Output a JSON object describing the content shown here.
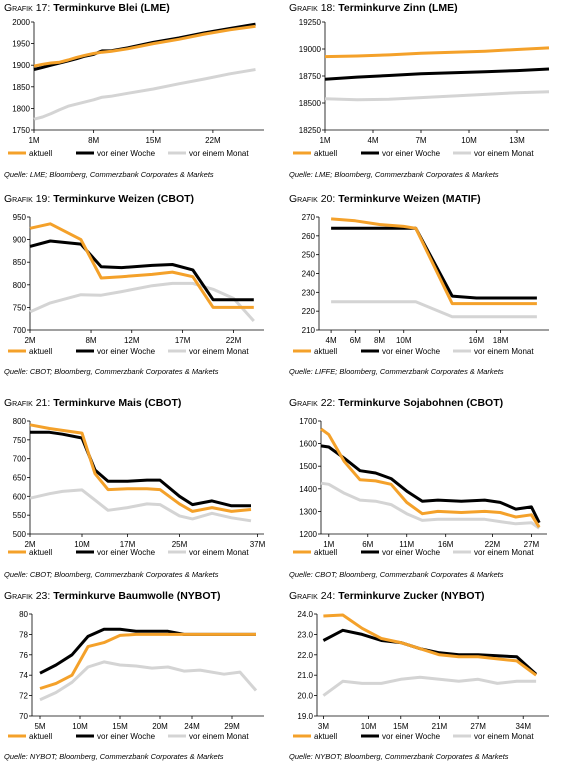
{
  "legend_labels": [
    "aktuell",
    "vor einer Woche",
    "vor einem Monat"
  ],
  "colors": {
    "aktuell": "#f4a12a",
    "woche": "#000000",
    "monat": "#d4d4d4"
  },
  "charts": [
    {
      "id": "g17",
      "prefix": "Grafik 17:",
      "title": "Terminkurve Blei (LME)",
      "source": "Quelle: LME; Bloomberg, Commerzbank Corporates & Markets"
    },
    {
      "id": "g18",
      "prefix": "Grafik 18:",
      "title": "Terminkurve Zinn (LME)",
      "source": "Quelle: LME; Bloomberg, Commerzbank Corporates & Markets"
    },
    {
      "id": "g19",
      "prefix": "Grafik 19:",
      "title": "Terminkurve Weizen (CBOT)",
      "source": "Quelle: CBOT; Bloomberg, Commerzbank Corporates & Markets"
    },
    {
      "id": "g20",
      "prefix": "Grafik 20:",
      "title": "Terminkurve Weizen (MATIF)",
      "source": "Quelle: LIFFE; Bloomberg, Commerzbank Corporates & Markets"
    },
    {
      "id": "g21",
      "prefix": "Grafik 21:",
      "title": "Terminkurve Mais (CBOT)",
      "source": "Quelle: CBOT; Bloomberg, Commerzbank Corporates & Markets"
    },
    {
      "id": "g22",
      "prefix": "Grafik 22:",
      "title": "Terminkurve Sojabohnen (CBOT)",
      "source": "Quelle: CBOT; Bloomberg, Commerzbank Corporates & Markets"
    },
    {
      "id": "g23",
      "prefix": "Grafik 23:",
      "title": "Terminkurve Baumwolle (NYBOT)",
      "source": "Quelle: NYBOT; Bloomberg, Commerzbank Corporates & Markets"
    },
    {
      "id": "g24",
      "prefix": "Grafik 24:",
      "title": "Terminkurve Zucker (NYBOT)",
      "source": "Quelle: NYBOT; Bloomberg, Commerzbank Corporates & Markets"
    }
  ],
  "chart_data": [
    {
      "type": "line",
      "title": "Terminkurve Blei (LME)",
      "x_range": [
        1,
        28
      ],
      "ylim": [
        1750,
        2000
      ],
      "y_ticks": [
        1750,
        1800,
        1850,
        1900,
        1950,
        2000
      ],
      "x_ticks": [
        {
          "x": 1,
          "label": "1M"
        },
        {
          "x": 8,
          "label": "8M"
        },
        {
          "x": 15,
          "label": "15M"
        },
        {
          "x": 22,
          "label": "22M"
        }
      ],
      "series": [
        {
          "name": "aktuell",
          "x": [
            1,
            2,
            3,
            4,
            5,
            6,
            7,
            8,
            9,
            10,
            12,
            15,
            18,
            21,
            24,
            27
          ],
          "y": [
            1898,
            1902,
            1905,
            1907,
            1912,
            1918,
            1923,
            1927,
            1930,
            1932,
            1938,
            1950,
            1960,
            1972,
            1982,
            1990
          ]
        },
        {
          "name": "vor einer Woche",
          "x": [
            1,
            2,
            3,
            4,
            5,
            6,
            7,
            8,
            9,
            10,
            12,
            15,
            18,
            21,
            24,
            27
          ],
          "y": [
            1890,
            1895,
            1900,
            1905,
            1910,
            1915,
            1921,
            1925,
            1933,
            1933,
            1940,
            1953,
            1963,
            1975,
            1985,
            1995
          ]
        },
        {
          "name": "vor einem Monat",
          "x": [
            1,
            2,
            3,
            4,
            5,
            6,
            7,
            8,
            9,
            10,
            12,
            15,
            18,
            21,
            24,
            27
          ],
          "y": [
            1775,
            1780,
            1788,
            1797,
            1805,
            1810,
            1815,
            1820,
            1826,
            1828,
            1835,
            1845,
            1857,
            1868,
            1880,
            1890
          ]
        }
      ]
    },
    {
      "type": "line",
      "title": "Terminkurve Zinn (LME)",
      "x_range": [
        1,
        15
      ],
      "ylim": [
        18250,
        19250
      ],
      "y_ticks": [
        18250,
        18500,
        18750,
        19000,
        19250
      ],
      "x_ticks": [
        {
          "x": 1,
          "label": "1M"
        },
        {
          "x": 4,
          "label": "4M"
        },
        {
          "x": 7,
          "label": "7M"
        },
        {
          "x": 10,
          "label": "10M"
        },
        {
          "x": 13,
          "label": "13M"
        }
      ],
      "series": [
        {
          "name": "aktuell",
          "x": [
            1,
            3,
            5,
            7,
            9,
            11,
            13,
            15
          ],
          "y": [
            18930,
            18935,
            18945,
            18960,
            18970,
            18980,
            18995,
            19010
          ]
        },
        {
          "name": "vor einer Woche",
          "x": [
            1,
            3,
            5,
            7,
            9,
            11,
            13,
            15
          ],
          "y": [
            18720,
            18740,
            18755,
            18770,
            18780,
            18790,
            18800,
            18815
          ]
        },
        {
          "name": "vor einem Monat",
          "x": [
            1,
            3,
            5,
            7,
            9,
            11,
            13,
            15
          ],
          "y": [
            18540,
            18530,
            18535,
            18550,
            18565,
            18580,
            18595,
            18605
          ]
        }
      ]
    },
    {
      "type": "line",
      "title": "Terminkurve Weizen (CBOT)",
      "x_range": [
        2,
        25
      ],
      "ylim": [
        700,
        950
      ],
      "y_ticks": [
        700,
        750,
        800,
        850,
        900,
        950
      ],
      "x_ticks": [
        {
          "x": 2,
          "label": "2M"
        },
        {
          "x": 8,
          "label": "8M"
        },
        {
          "x": 12,
          "label": "12M"
        },
        {
          "x": 17,
          "label": "17M"
        },
        {
          "x": 22,
          "label": "22M"
        }
      ],
      "series": [
        {
          "name": "aktuell",
          "x": [
            2,
            4,
            7,
            9,
            11,
            14,
            16,
            18,
            20,
            22,
            24
          ],
          "y": [
            925,
            935,
            900,
            815,
            818,
            823,
            828,
            818,
            750,
            750,
            750
          ]
        },
        {
          "name": "vor einer Woche",
          "x": [
            2,
            4,
            7,
            9,
            11,
            14,
            16,
            18,
            20,
            22,
            24
          ],
          "y": [
            885,
            897,
            890,
            840,
            838,
            843,
            845,
            833,
            767,
            767,
            767
          ]
        },
        {
          "name": "vor einem Monat",
          "x": [
            2,
            4,
            7,
            9,
            11,
            14,
            16,
            18,
            20,
            22,
            24
          ],
          "y": [
            740,
            760,
            778,
            777,
            785,
            798,
            803,
            803,
            790,
            770,
            720
          ]
        }
      ]
    },
    {
      "type": "line",
      "title": "Terminkurve Weizen (MATIF)",
      "x_range": [
        3,
        22
      ],
      "ylim": [
        210,
        270
      ],
      "y_ticks": [
        210,
        220,
        230,
        240,
        250,
        260,
        270
      ],
      "x_ticks": [
        {
          "x": 4,
          "label": "4M"
        },
        {
          "x": 6,
          "label": "6M"
        },
        {
          "x": 8,
          "label": "8M"
        },
        {
          "x": 10,
          "label": "10M"
        },
        {
          "x": 16,
          "label": "16M"
        },
        {
          "x": 18,
          "label": "18M"
        }
      ],
      "series": [
        {
          "name": "aktuell",
          "x": [
            4,
            6,
            8,
            10,
            11,
            14,
            16,
            18,
            21
          ],
          "y": [
            269,
            268,
            266,
            265,
            264,
            224,
            224,
            224,
            224
          ]
        },
        {
          "name": "vor einer Woche",
          "x": [
            4,
            6,
            8,
            10,
            11,
            14,
            16,
            18,
            21
          ],
          "y": [
            264,
            264,
            264,
            264,
            264,
            228,
            227,
            227,
            227
          ]
        },
        {
          "name": "vor einem Monat",
          "x": [
            4,
            6,
            8,
            10,
            11,
            14,
            16,
            18,
            21
          ],
          "y": [
            225,
            225,
            225,
            225,
            225,
            217,
            217,
            217,
            217
          ]
        }
      ]
    },
    {
      "type": "line",
      "title": "Terminkurve Mais (CBOT)",
      "x_range": [
        2,
        38
      ],
      "ylim": [
        500,
        800
      ],
      "y_ticks": [
        500,
        550,
        600,
        650,
        700,
        750,
        800
      ],
      "x_ticks": [
        {
          "x": 2,
          "label": "2M"
        },
        {
          "x": 10,
          "label": "10M"
        },
        {
          "x": 17,
          "label": "17M"
        },
        {
          "x": 25,
          "label": "25M"
        },
        {
          "x": 37,
          "label": "37M"
        }
      ],
      "series": [
        {
          "name": "aktuell",
          "x": [
            2,
            5,
            7,
            10,
            12,
            14,
            17,
            20,
            22,
            25,
            27,
            30,
            33,
            36
          ],
          "y": [
            790,
            780,
            775,
            768,
            660,
            618,
            620,
            620,
            618,
            580,
            560,
            570,
            560,
            565
          ]
        },
        {
          "name": "vor einer Woche",
          "x": [
            2,
            5,
            7,
            10,
            12,
            14,
            17,
            20,
            22,
            25,
            27,
            30,
            33,
            36
          ],
          "y": [
            770,
            770,
            765,
            755,
            670,
            640,
            640,
            643,
            643,
            600,
            578,
            588,
            575,
            575
          ]
        },
        {
          "name": "vor einem Monat",
          "x": [
            2,
            5,
            7,
            10,
            12,
            14,
            17,
            20,
            22,
            25,
            27,
            30,
            33,
            36
          ],
          "y": [
            595,
            607,
            613,
            617,
            590,
            563,
            570,
            580,
            578,
            548,
            540,
            555,
            543,
            535
          ]
        }
      ]
    },
    {
      "type": "line",
      "title": "Terminkurve Sojabohnen (CBOT)",
      "x_range": [
        0,
        29
      ],
      "ylim": [
        1200,
        1700
      ],
      "y_ticks": [
        1200,
        1300,
        1400,
        1500,
        1600,
        1700
      ],
      "x_ticks": [
        {
          "x": 1,
          "label": "1M"
        },
        {
          "x": 6,
          "label": "6M"
        },
        {
          "x": 11,
          "label": "11M"
        },
        {
          "x": 16,
          "label": "16M"
        },
        {
          "x": 22,
          "label": "22M"
        },
        {
          "x": 27,
          "label": "27M"
        }
      ],
      "series": [
        {
          "name": "aktuell",
          "x": [
            0,
            1,
            3,
            5,
            7,
            9,
            11,
            13,
            15,
            18,
            21,
            23,
            25,
            27,
            28
          ],
          "y": [
            1665,
            1640,
            1520,
            1440,
            1435,
            1420,
            1340,
            1290,
            1300,
            1295,
            1300,
            1295,
            1275,
            1285,
            1230
          ]
        },
        {
          "name": "vor einer Woche",
          "x": [
            0,
            1,
            3,
            5,
            7,
            9,
            11,
            13,
            15,
            18,
            21,
            23,
            25,
            27,
            28
          ],
          "y": [
            1590,
            1585,
            1535,
            1480,
            1470,
            1445,
            1390,
            1345,
            1350,
            1345,
            1350,
            1340,
            1310,
            1320,
            1250
          ]
        },
        {
          "name": "vor einem Monat",
          "x": [
            0,
            1,
            3,
            5,
            7,
            9,
            11,
            13,
            15,
            18,
            21,
            23,
            25,
            27,
            28
          ],
          "y": [
            1425,
            1420,
            1380,
            1350,
            1345,
            1330,
            1290,
            1260,
            1265,
            1265,
            1265,
            1255,
            1245,
            1250,
            1225
          ]
        }
      ]
    },
    {
      "type": "line",
      "title": "Terminkurve Baumwolle (NYBOT)",
      "x_range": [
        4,
        33
      ],
      "ylim": [
        70,
        80
      ],
      "y_ticks": [
        70,
        72,
        74,
        76,
        78,
        80
      ],
      "x_ticks": [
        {
          "x": 5,
          "label": "5M"
        },
        {
          "x": 10,
          "label": "10M"
        },
        {
          "x": 15,
          "label": "15M"
        },
        {
          "x": 20,
          "label": "20M"
        },
        {
          "x": 24,
          "label": "24M"
        },
        {
          "x": 29,
          "label": "29M"
        }
      ],
      "series": [
        {
          "name": "aktuell",
          "x": [
            5,
            7,
            9,
            11,
            13,
            15,
            17,
            19,
            21,
            23,
            25,
            28,
            30,
            32
          ],
          "y": [
            72.7,
            73.2,
            74,
            76.8,
            77.2,
            77.9,
            78,
            78,
            78,
            78,
            78,
            78,
            78,
            78
          ]
        },
        {
          "name": "vor einer Woche",
          "x": [
            5,
            7,
            9,
            11,
            13,
            15,
            17,
            19,
            21,
            23,
            25,
            28,
            30,
            32
          ],
          "y": [
            74.2,
            75,
            76,
            77.8,
            78.5,
            78.5,
            78.3,
            78.3,
            78.3,
            78,
            78,
            78,
            78,
            78
          ]
        },
        {
          "name": "vor einem Monat",
          "x": [
            5,
            7,
            9,
            11,
            13,
            15,
            17,
            19,
            21,
            23,
            25,
            28,
            30,
            32
          ],
          "y": [
            71.6,
            72.3,
            73.3,
            74.8,
            75.3,
            75,
            74.9,
            74.7,
            74.8,
            74.4,
            74.5,
            74.1,
            74.3,
            72.5
          ]
        }
      ]
    },
    {
      "type": "line",
      "title": "Terminkurve Zucker (NYBOT)",
      "x_range": [
        2,
        38
      ],
      "ylim": [
        19,
        24
      ],
      "y_ticks": [
        19,
        20,
        21,
        22,
        23,
        24
      ],
      "x_ticks": [
        {
          "x": 3,
          "label": "3M"
        },
        {
          "x": 10,
          "label": "10M"
        },
        {
          "x": 15,
          "label": "15M"
        },
        {
          "x": 21,
          "label": "21M"
        },
        {
          "x": 27,
          "label": "27M"
        },
        {
          "x": 34,
          "label": "34M"
        }
      ],
      "series": [
        {
          "name": "aktuell",
          "x": [
            3,
            6,
            9,
            12,
            15,
            18,
            21,
            24,
            27,
            30,
            33,
            36
          ],
          "y": [
            23.9,
            23.95,
            23.3,
            22.8,
            22.6,
            22.3,
            22,
            21.9,
            21.9,
            21.8,
            21.7,
            21
          ]
        },
        {
          "name": "vor einer Woche",
          "x": [
            3,
            6,
            9,
            12,
            15,
            18,
            21,
            24,
            27,
            30,
            33,
            36
          ],
          "y": [
            22.7,
            23.2,
            23,
            22.7,
            22.6,
            22.3,
            22.1,
            22,
            22,
            21.95,
            21.9,
            21.05
          ]
        },
        {
          "name": "vor einem Monat",
          "x": [
            3,
            6,
            9,
            12,
            15,
            18,
            21,
            24,
            27,
            30,
            33,
            36
          ],
          "y": [
            20,
            20.7,
            20.6,
            20.6,
            20.8,
            20.9,
            20.8,
            20.7,
            20.8,
            20.6,
            20.7,
            20.7
          ]
        }
      ]
    }
  ]
}
